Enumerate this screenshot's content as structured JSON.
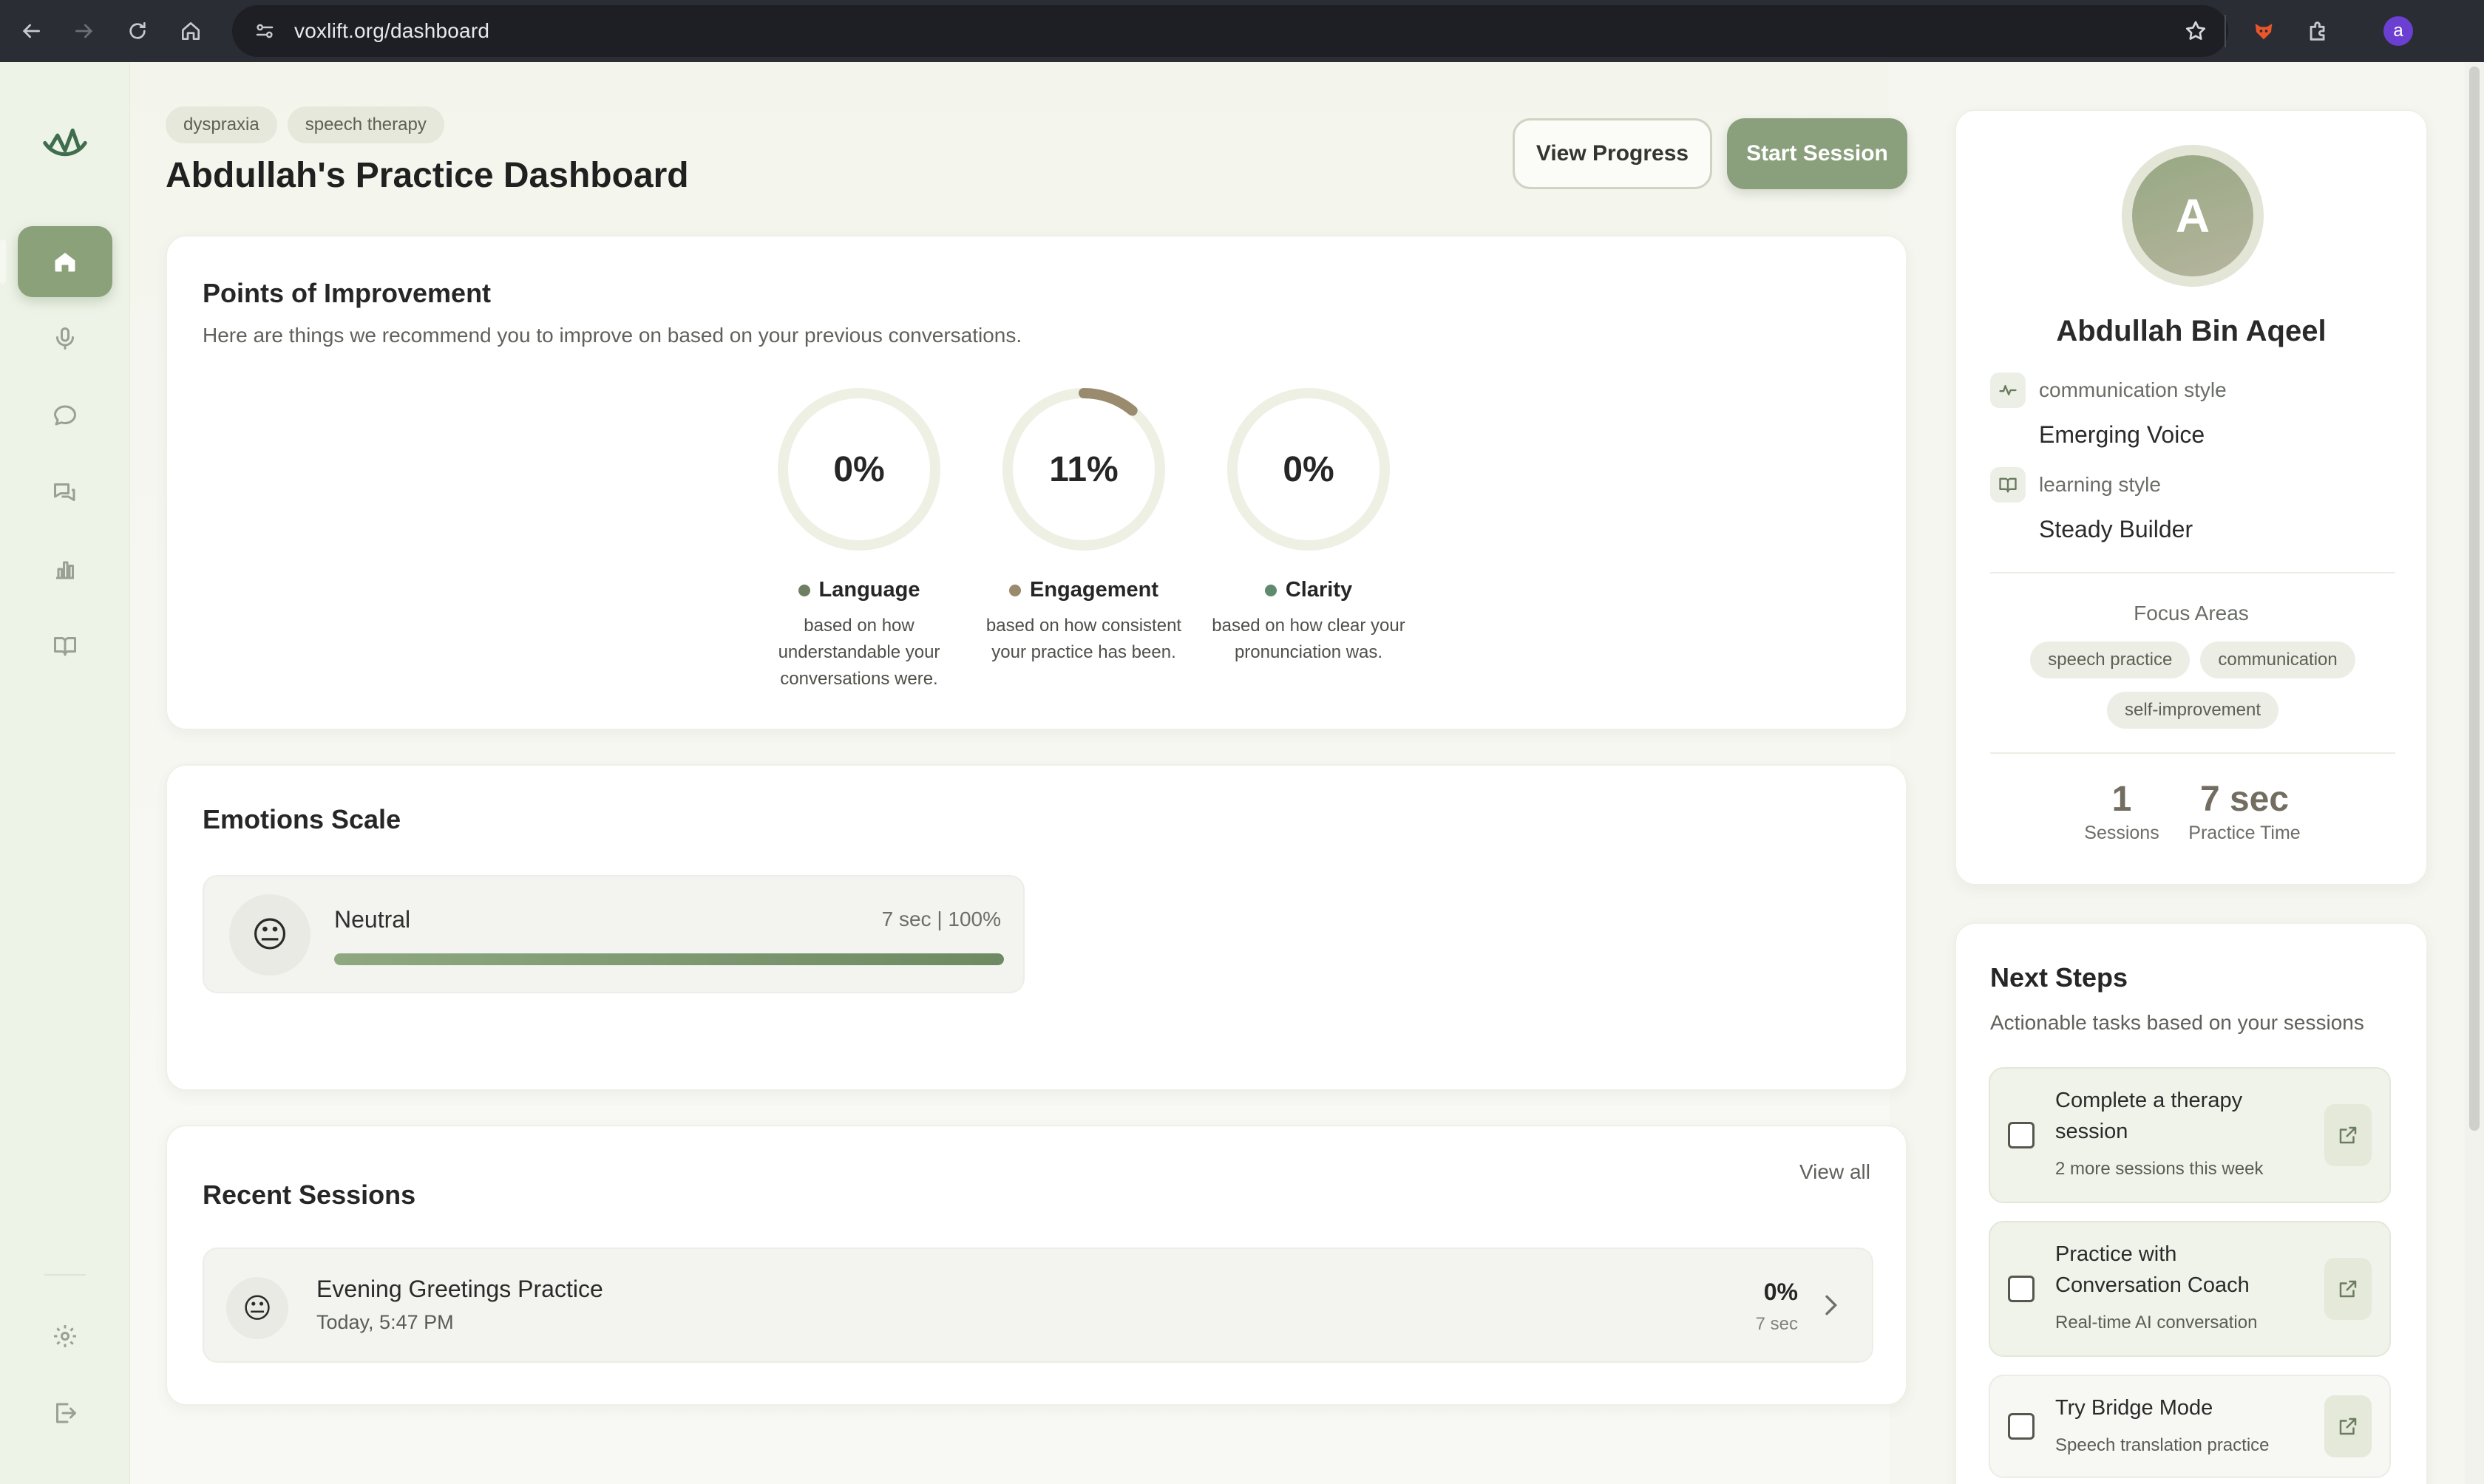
{
  "browser": {
    "url": "voxlift.org/dashboard",
    "profile_initial": "a"
  },
  "header": {
    "tags": [
      "dyspraxia",
      "speech therapy"
    ],
    "title": "Abdullah's Practice Dashboard",
    "view_progress_label": "View Progress",
    "start_session_label": "Start Session"
  },
  "improvement": {
    "title": "Points of Improvement",
    "subtitle": "Here are things we recommend you to improve on based on your previous conversations.",
    "metrics": [
      {
        "pct_label": "0%",
        "value": 0,
        "label": "Language",
        "desc": "based on how understandable your conversations were.",
        "color": "#6f7f62"
      },
      {
        "pct_label": "11%",
        "value": 11,
        "label": "Engagement",
        "desc": "based on how consistent your practice has been.",
        "color": "#9a8a6e"
      },
      {
        "pct_label": "0%",
        "value": 0,
        "label": "Clarity",
        "desc": "based on how clear your pronunciation was.",
        "color": "#5e8a6e"
      }
    ]
  },
  "emotions": {
    "title": "Emotions Scale",
    "items": [
      {
        "emoji": "😐",
        "name": "Neutral",
        "meta": "7 sec | 100%",
        "fraction": 1.0
      }
    ]
  },
  "sessions": {
    "title": "Recent Sessions",
    "view_all": "View all",
    "items": [
      {
        "emoji": "😐",
        "title": "Evening Greetings Practice",
        "time": "Today, 5:47 PM",
        "pct": "0%",
        "duration": "7 sec"
      }
    ]
  },
  "profile": {
    "initial": "A",
    "name": "Abdullah Bin Aqeel",
    "communication_label": "communication style",
    "communication_value": "Emerging Voice",
    "learning_label": "learning style",
    "learning_value": "Steady Builder",
    "focus_title": "Focus Areas",
    "focus_tags": [
      "speech practice",
      "communication",
      "self-improvement"
    ],
    "sessions_count": "1",
    "sessions_label": "Sessions",
    "practice_time": "7 sec",
    "practice_label": "Practice Time"
  },
  "next_steps": {
    "title": "Next Steps",
    "subtitle": "Actionable tasks based on your sessions",
    "tasks": [
      {
        "title": "Complete a therapy session",
        "sub": "2 more sessions this week"
      },
      {
        "title": "Practice with Conversation Coach",
        "sub": "Real-time AI conversation"
      },
      {
        "title": "Try Bridge Mode",
        "sub": "Speech translation practice"
      }
    ]
  },
  "colors": {
    "accent": "#8a9f7c",
    "ring_track": "#eef0e4",
    "engagement_arc": "#9a8a6e"
  }
}
